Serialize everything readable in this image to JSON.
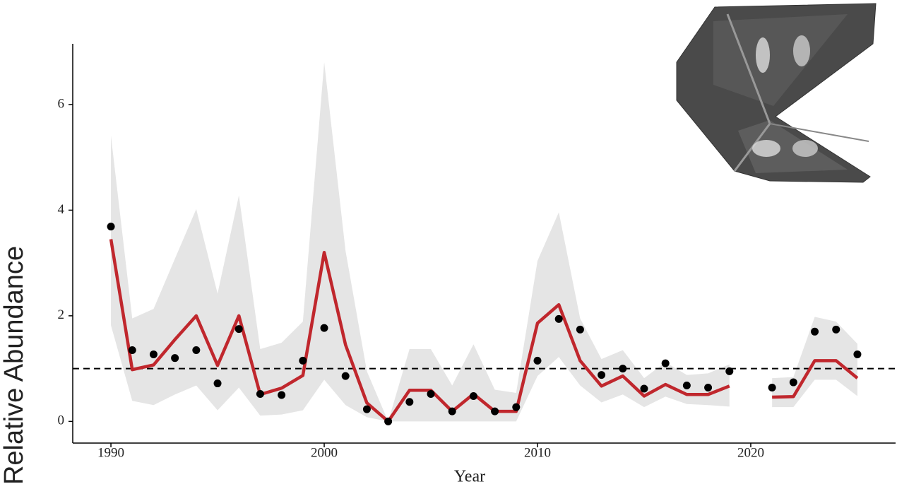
{
  "chart_data": {
    "type": "line",
    "xlabel": "Year",
    "ylabel": "Relative Abundance",
    "x": [
      1990,
      1991,
      1992,
      1993,
      1994,
      1995,
      1996,
      1997,
      1998,
      1999,
      2000,
      2001,
      2002,
      2003,
      2004,
      2005,
      2006,
      2007,
      2008,
      2009,
      2010,
      2011,
      2012,
      2013,
      2014,
      2015,
      2016,
      2017,
      2018,
      2019,
      2020,
      2021,
      2022,
      2023,
      2024,
      2025
    ],
    "points": {
      "color": "#000000",
      "values": [
        3.69,
        1.35,
        1.27,
        1.2,
        1.35,
        0.72,
        1.75,
        0.52,
        0.5,
        1.15,
        1.77,
        0.86,
        0.23,
        0,
        0.37,
        0.52,
        0.19,
        0.48,
        0.19,
        0.27,
        1.15,
        1.94,
        1.74,
        0.88,
        1.0,
        0.62,
        1.1,
        0.68,
        0.64,
        0.95,
        null,
        0.64,
        0.74,
        1.7,
        1.74,
        1.27
      ]
    },
    "fit": {
      "color": "#c0272d",
      "band_color": "#e5e5e5",
      "values": [
        3.45,
        0.98,
        1.07,
        1.55,
        2.0,
        1.06,
        2.0,
        0.51,
        0.63,
        0.87,
        3.2,
        1.45,
        0.35,
        0,
        0.59,
        0.59,
        0.19,
        0.52,
        0.19,
        0.19,
        1.86,
        2.21,
        1.15,
        0.67,
        0.86,
        0.48,
        0.7,
        0.51,
        0.51,
        0.67,
        null,
        0.46,
        0.47,
        1.15,
        1.15,
        0.82
      ],
      "upper": [
        5.41,
        1.95,
        2.13,
        3.08,
        4.02,
        2.42,
        4.28,
        1.37,
        1.49,
        1.89,
        6.8,
        3.23,
        0.95,
        0,
        1.37,
        1.37,
        0.68,
        1.46,
        0.6,
        0.54,
        3.04,
        3.96,
        1.95,
        1.18,
        1.35,
        0.82,
        1.12,
        0.88,
        0.91,
        1.08,
        null,
        0.82,
        0.84,
        1.98,
        1.89,
        1.47
      ],
      "lower": [
        1.82,
        0.39,
        0.31,
        0.51,
        0.68,
        0.21,
        0.64,
        0.11,
        0.13,
        0.21,
        0.79,
        0.31,
        0.08,
        0,
        0,
        0,
        0,
        0,
        0,
        0,
        0.86,
        1.22,
        0.68,
        0.36,
        0.51,
        0.27,
        0.47,
        0.33,
        0.31,
        0.28,
        null,
        0.27,
        0.27,
        0.79,
        0.79,
        0.48
      ]
    },
    "reference_line": 1,
    "xlim": [
      1988.21,
      2026.79
    ],
    "ylim": [
      -0.41,
      7.15
    ],
    "xticks": [
      1990,
      2000,
      2010,
      2020
    ],
    "yticks": [
      0,
      2,
      4,
      6
    ]
  }
}
